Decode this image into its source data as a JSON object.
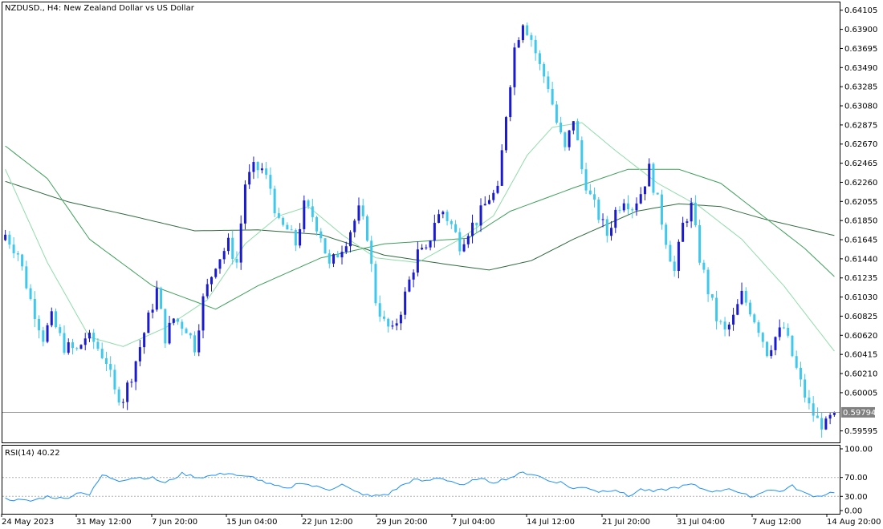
{
  "symbol_title": "NZDUSD., H4:  New Zealand Dollar vs US Dollar",
  "current_price_label": "0.59794",
  "rsi_title": "RSI(14) 40.22",
  "colors": {
    "bull": "#1a1ad0",
    "bear": "#3ec8ee",
    "ma_fast": "#8fdca9",
    "ma_mid": "#3e9f5a",
    "ma_slow": "#2f6b3f",
    "rsi": "#1e90ff",
    "frame": "#000000",
    "price_line": "#9a9a9a",
    "price_tag_bg": "#808080"
  },
  "chart_data": {
    "type": "candlestick",
    "main": {
      "yticks": [
        "0.64105",
        "0.63900",
        "0.63695",
        "0.63490",
        "0.63285",
        "0.63080",
        "0.62875",
        "0.62670",
        "0.62465",
        "0.62260",
        "0.62055",
        "0.61850",
        "0.61645",
        "0.61440",
        "0.61235",
        "0.61030",
        "0.60825",
        "0.60620",
        "0.60415",
        "0.60210",
        "0.60005",
        "0.59595"
      ],
      "ylim": [
        0.5948,
        0.6418
      ],
      "current_price": 0.59794,
      "close_path": [
        [
          0,
          0.617
        ],
        [
          3,
          0.615
        ],
        [
          6,
          0.61
        ],
        [
          9,
          0.606
        ],
        [
          11,
          0.608
        ],
        [
          14,
          0.605
        ],
        [
          17,
          0.6045
        ],
        [
          19,
          0.606
        ],
        [
          21,
          0.6055
        ],
        [
          24,
          0.6035
        ],
        [
          26,
          0.6
        ],
        [
          28,
          0.5995
        ],
        [
          30,
          0.602
        ],
        [
          33,
          0.6065
        ],
        [
          36,
          0.611
        ],
        [
          38,
          0.606
        ],
        [
          40,
          0.608
        ],
        [
          43,
          0.607
        ],
        [
          45,
          0.605
        ],
        [
          47,
          0.61
        ],
        [
          50,
          0.614
        ],
        [
          53,
          0.616
        ],
        [
          55,
          0.614
        ],
        [
          57,
          0.6225
        ],
        [
          59,
          0.624
        ],
        [
          61,
          0.624
        ],
        [
          63,
          0.622
        ],
        [
          65,
          0.618
        ],
        [
          67,
          0.6175
        ],
        [
          69,
          0.616
        ],
        [
          71,
          0.62
        ],
        [
          73,
          0.619
        ],
        [
          75,
          0.617
        ],
        [
          77,
          0.6135
        ],
        [
          79,
          0.615
        ],
        [
          81,
          0.6165
        ],
        [
          84,
          0.6195
        ],
        [
          86,
          0.617
        ],
        [
          88,
          0.61
        ],
        [
          90,
          0.6075
        ],
        [
          92,
          0.6065
        ],
        [
          94,
          0.609
        ],
        [
          96,
          0.612
        ],
        [
          98,
          0.615
        ],
        [
          100,
          0.615
        ],
        [
          102,
          0.6185
        ],
        [
          104,
          0.6195
        ],
        [
          106,
          0.618
        ],
        [
          108,
          0.616
        ],
        [
          110,
          0.6175
        ],
        [
          112,
          0.6185
        ],
        [
          115,
          0.621
        ],
        [
          117,
          0.6215
        ],
        [
          119,
          0.63
        ],
        [
          121,
          0.637
        ],
        [
          123,
          0.64
        ],
        [
          125,
          0.638
        ],
        [
          127,
          0.635
        ],
        [
          129,
          0.633
        ],
        [
          131,
          0.629
        ],
        [
          133,
          0.626
        ],
        [
          135,
          0.6295
        ],
        [
          137,
          0.624
        ],
        [
          139,
          0.621
        ],
        [
          141,
          0.619
        ],
        [
          143,
          0.617
        ],
        [
          145,
          0.6195
        ],
        [
          147,
          0.621
        ],
        [
          149,
          0.62
        ],
        [
          151,
          0.6215
        ],
        [
          153,
          0.624
        ],
        [
          155,
          0.6205
        ],
        [
          157,
          0.6165
        ],
        [
          159,
          0.613
        ],
        [
          161,
          0.618
        ],
        [
          163,
          0.62
        ],
        [
          165,
          0.6145
        ],
        [
          167,
          0.611
        ],
        [
          169,
          0.608
        ],
        [
          171,
          0.6065
        ],
        [
          173,
          0.608
        ],
        [
          175,
          0.6105
        ],
        [
          177,
          0.609
        ],
        [
          179,
          0.607
        ],
        [
          181,
          0.6045
        ],
        [
          183,
          0.606
        ],
        [
          185,
          0.607
        ],
        [
          187,
          0.604
        ],
        [
          189,
          0.601
        ],
        [
          191,
          0.5985
        ],
        [
          193,
          0.597
        ],
        [
          195,
          0.5965
        ],
        [
          197,
          0.5979
        ]
      ],
      "series_ma": [
        {
          "key": "ma_slow",
          "points": [
            [
              0,
              0.6227
            ],
            [
              15,
              0.6205
            ],
            [
              30,
              0.619
            ],
            [
              45,
              0.6174
            ],
            [
              60,
              0.6175
            ],
            [
              75,
              0.617
            ],
            [
              90,
              0.6148
            ],
            [
              105,
              0.6138
            ],
            [
              115,
              0.6132
            ],
            [
              125,
              0.6142
            ],
            [
              135,
              0.6165
            ],
            [
              150,
              0.6195
            ],
            [
              160,
              0.6203
            ],
            [
              170,
              0.62
            ],
            [
              180,
              0.6187
            ],
            [
              197,
              0.6169
            ]
          ]
        },
        {
          "key": "ma_mid",
          "points": [
            [
              0,
              0.6265
            ],
            [
              10,
              0.623
            ],
            [
              20,
              0.6165
            ],
            [
              35,
              0.6115
            ],
            [
              50,
              0.609
            ],
            [
              60,
              0.6115
            ],
            [
              75,
              0.6145
            ],
            [
              90,
              0.616
            ],
            [
              100,
              0.6163
            ],
            [
              110,
              0.6166
            ],
            [
              120,
              0.6195
            ],
            [
              135,
              0.622
            ],
            [
              148,
              0.624
            ],
            [
              160,
              0.624
            ],
            [
              170,
              0.6225
            ],
            [
              180,
              0.619
            ],
            [
              190,
              0.6155
            ],
            [
              197,
              0.6125
            ]
          ]
        },
        {
          "key": "ma_fast",
          "points": [
            [
              0,
              0.624
            ],
            [
              10,
              0.614
            ],
            [
              20,
              0.606
            ],
            [
              28,
              0.605
            ],
            [
              38,
              0.607
            ],
            [
              48,
              0.61
            ],
            [
              57,
              0.616
            ],
            [
              65,
              0.619
            ],
            [
              72,
              0.62
            ],
            [
              80,
              0.617
            ],
            [
              88,
              0.6145
            ],
            [
              98,
              0.614
            ],
            [
              108,
              0.6165
            ],
            [
              116,
              0.619
            ],
            [
              124,
              0.6255
            ],
            [
              130,
              0.6285
            ],
            [
              137,
              0.629
            ],
            [
              145,
              0.626
            ],
            [
              155,
              0.6225
            ],
            [
              165,
              0.62
            ],
            [
              175,
              0.6165
            ],
            [
              185,
              0.6115
            ],
            [
              197,
              0.6045
            ]
          ]
        }
      ]
    },
    "rsi": {
      "yticks": [
        "100.00",
        "70.00",
        "30.00",
        "0.00"
      ],
      "levels": [
        70,
        30
      ],
      "ylim": [
        0,
        100
      ],
      "path": [
        [
          0,
          25
        ],
        [
          3,
          22
        ],
        [
          6,
          20
        ],
        [
          10,
          30
        ],
        [
          14,
          25
        ],
        [
          18,
          40
        ],
        [
          20,
          33
        ],
        [
          23,
          75
        ],
        [
          27,
          64
        ],
        [
          31,
          70
        ],
        [
          35,
          69
        ],
        [
          38,
          58
        ],
        [
          42,
          78
        ],
        [
          46,
          70
        ],
        [
          50,
          75
        ],
        [
          53,
          80
        ],
        [
          56,
          72
        ],
        [
          59,
          70
        ],
        [
          63,
          55
        ],
        [
          67,
          45
        ],
        [
          70,
          60
        ],
        [
          73,
          52
        ],
        [
          77,
          45
        ],
        [
          80,
          55
        ],
        [
          83,
          40
        ],
        [
          87,
          30
        ],
        [
          91,
          35
        ],
        [
          94,
          52
        ],
        [
          97,
          65
        ],
        [
          100,
          62
        ],
        [
          103,
          70
        ],
        [
          106,
          62
        ],
        [
          109,
          52
        ],
        [
          112,
          68
        ],
        [
          116,
          60
        ],
        [
          120,
          70
        ],
        [
          123,
          80
        ],
        [
          126,
          76
        ],
        [
          129,
          63
        ],
        [
          132,
          60
        ],
        [
          135,
          46
        ],
        [
          138,
          50
        ],
        [
          141,
          40
        ],
        [
          145,
          45
        ],
        [
          148,
          30
        ],
        [
          151,
          45
        ],
        [
          154,
          40
        ],
        [
          157,
          45
        ],
        [
          160,
          50
        ],
        [
          163,
          55
        ],
        [
          166,
          45
        ],
        [
          169,
          40
        ],
        [
          172,
          48
        ],
        [
          175,
          34
        ],
        [
          178,
          30
        ],
        [
          181,
          45
        ],
        [
          184,
          40
        ],
        [
          187,
          52
        ],
        [
          190,
          36
        ],
        [
          193,
          30
        ],
        [
          197,
          40
        ]
      ]
    },
    "xticks": [
      "24 May 2023",
      "31 May 12:00",
      "7 Jun 20:00",
      "15 Jun 04:00",
      "22 Jun 12:00",
      "29 Jun 20:00",
      "7 Jul 04:00",
      "14 Jul 12:00",
      "21 Jul 20:00",
      "31 Jul 04:00",
      "7 Aug 12:00",
      "14 Aug 20:00"
    ]
  }
}
